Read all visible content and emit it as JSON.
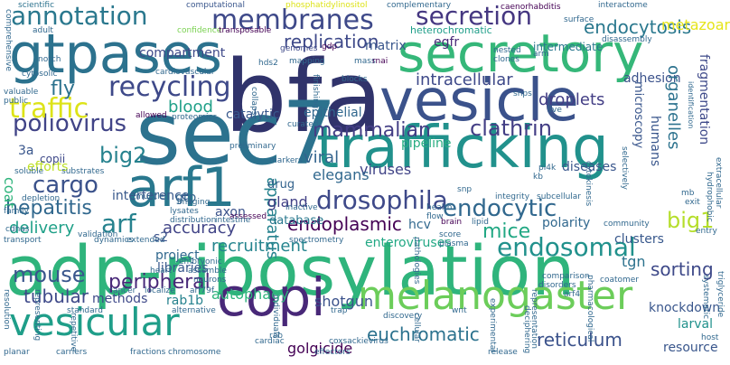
{
  "words": [
    {
      "text": "adp-ribosylation",
      "color": "#2fb47c"
    },
    {
      "text": "bfa",
      "color": "#30336b"
    },
    {
      "text": "sec7",
      "color": "#2c728e"
    },
    {
      "text": "trafficking",
      "color": "#21918c"
    },
    {
      "text": "gtpases",
      "color": "#2c728e"
    },
    {
      "text": "vesicle",
      "color": "#3b528b"
    },
    {
      "text": "secretory",
      "color": "#35b779"
    },
    {
      "text": "arf1",
      "color": "#29788e"
    },
    {
      "text": "copi",
      "color": "#482878"
    },
    {
      "text": "melanogaster",
      "color": "#6ccd5a"
    },
    {
      "text": "vesicular",
      "color": "#1f9e89"
    },
    {
      "text": "membranes",
      "color": "#3e4989"
    },
    {
      "text": "secretion",
      "color": "#453781"
    },
    {
      "text": "recycling",
      "color": "#3e4989"
    },
    {
      "text": "drosophila",
      "color": "#3e4989"
    },
    {
      "text": "annotation",
      "color": "#2a788e"
    },
    {
      "text": "endosomal",
      "color": "#21918c"
    },
    {
      "text": "endocytic",
      "color": "#31688e"
    },
    {
      "text": "mammalian",
      "color": "#433e85"
    },
    {
      "text": "clathrin",
      "color": "#433e85"
    },
    {
      "text": "poliovirus",
      "color": "#414487"
    },
    {
      "text": "big2",
      "color": "#26828e"
    },
    {
      "text": "cargo",
      "color": "#3b528b"
    },
    {
      "text": "arf",
      "color": "#26828e"
    },
    {
      "text": "endoplasmic",
      "color": "#440154"
    },
    {
      "text": "hepatitis",
      "color": "#31688e"
    },
    {
      "text": "mouse",
      "color": "#39568c"
    },
    {
      "text": "peripheral",
      "color": "#482878"
    },
    {
      "text": "tubular",
      "color": "#3e4989"
    },
    {
      "text": "traffic",
      "color": "#dde318"
    },
    {
      "text": "fly",
      "color": "#2c728e"
    },
    {
      "text": "big1",
      "color": "#b5de2b"
    },
    {
      "text": "mice",
      "color": "#22a884"
    },
    {
      "text": "endocytosis",
      "color": "#2a788e"
    },
    {
      "text": "replication",
      "color": "#3e4989"
    },
    {
      "text": "intracellular",
      "color": "#3e4989"
    },
    {
      "text": "droplets",
      "color": "#433e85"
    },
    {
      "text": "sorting",
      "color": "#3e4989"
    },
    {
      "text": "euchromatic",
      "color": "#2c728e"
    },
    {
      "text": "reticulum",
      "color": "#3b528b"
    },
    {
      "text": "recruitment",
      "color": "#25848e"
    },
    {
      "text": "apparatus",
      "color": "#26828e"
    },
    {
      "text": "blood",
      "color": "#1fa088"
    },
    {
      "text": "delivery",
      "color": "#1fa088"
    },
    {
      "text": "accuracy",
      "color": "#414487"
    },
    {
      "text": "viral",
      "color": "#33638d"
    },
    {
      "text": "gland",
      "color": "#424086"
    },
    {
      "text": "viruses",
      "color": "#414487"
    },
    {
      "text": "elegans",
      "color": "#31688e"
    },
    {
      "text": "metazoan",
      "color": "#e5e419"
    },
    {
      "text": "adhesion",
      "color": "#3b528b"
    },
    {
      "text": "organelles",
      "color": "#2c728e"
    },
    {
      "text": "autophagy",
      "color": "#2fb47c"
    },
    {
      "text": "golgicide",
      "color": "#440154"
    },
    {
      "text": "shotgun",
      "color": "#3b528b"
    },
    {
      "text": "rab1b",
      "color": "#26828e"
    },
    {
      "text": "methods",
      "color": "#3e4989"
    },
    {
      "text": "project",
      "color": "#31688e"
    },
    {
      "text": "clusters",
      "color": "#38588c"
    },
    {
      "text": "tgn",
      "color": "#2c728e"
    },
    {
      "text": "knockdown",
      "color": "#39568c"
    },
    {
      "text": "larval",
      "color": "#21918c"
    },
    {
      "text": "resource",
      "color": "#39568c"
    },
    {
      "text": "coat",
      "color": "#2fb47c"
    },
    {
      "text": "3a",
      "color": "#39568c"
    },
    {
      "text": "s2",
      "color": "#3b528b"
    },
    {
      "text": "interference",
      "color": "#38588c"
    },
    {
      "text": "efforts",
      "color": "#bddf26"
    },
    {
      "text": "epithelial",
      "color": "#31688e"
    },
    {
      "text": "catalytic",
      "color": "#38588c"
    },
    {
      "text": "pipeline",
      "color": "#27ad81"
    },
    {
      "text": "diseases",
      "color": "#39568c"
    },
    {
      "text": "polarity",
      "color": "#31688e"
    },
    {
      "text": "enteroviruses",
      "color": "#22a884"
    },
    {
      "text": "hcv",
      "color": "#31688e"
    },
    {
      "text": "libraries",
      "color": "#38588c"
    },
    {
      "text": "axon",
      "color": "#3b528b"
    },
    {
      "text": "database",
      "color": "#2a788e"
    },
    {
      "text": "gtp",
      "color": "#33638d"
    },
    {
      "text": "drug",
      "color": "#33638d"
    },
    {
      "text": "compartment",
      "color": "#3e4989"
    },
    {
      "text": "fragmentation",
      "color": "#3e4989"
    },
    {
      "text": "humans",
      "color": "#39568c"
    },
    {
      "text": "microscopy",
      "color": "#39568c"
    },
    {
      "text": "egfr",
      "color": "#482878"
    },
    {
      "text": "matrix",
      "color": "#39568c"
    },
    {
      "text": "intermediate",
      "color": "#2a788e"
    },
    {
      "text": "heterochromatic",
      "color": "#1f9e89"
    },
    {
      "text": "copii",
      "color": "#3e4989"
    },
    {
      "text": "enhanced",
      "color": "#addc30"
    },
    {
      "text": "muscle",
      "color": "#31688e"
    },
    {
      "text": "scientific",
      "color": "#2c728e"
    },
    {
      "text": "computational",
      "color": "#39568c"
    },
    {
      "text": "phosphatidylinositol",
      "color": "#dde318"
    },
    {
      "text": "complementary",
      "color": "#31688e"
    },
    {
      "text": "caenorhabditis",
      "color": "#440154"
    },
    {
      "text": "interactome",
      "color": "#31688e"
    },
    {
      "text": "surface",
      "color": "#31688e"
    },
    {
      "text": "disassembly",
      "color": "#31688e"
    },
    {
      "text": "adult",
      "color": "#31688e"
    },
    {
      "text": "confidence",
      "color": "#7ad151"
    },
    {
      "text": "transposable",
      "color": "#440154"
    },
    {
      "text": "genomes",
      "color": "#3e4989"
    },
    {
      "text": "gdp",
      "color": "#440154"
    },
    {
      "text": "nested",
      "color": "#31688e"
    },
    {
      "text": "clones",
      "color": "#31688e"
    },
    {
      "text": "arm",
      "color": "#31688e"
    },
    {
      "text": "notch",
      "color": "#31688e"
    },
    {
      "text": "mapping",
      "color": "#31688e"
    },
    {
      "text": "mass",
      "color": "#31688e"
    },
    {
      "text": "rnai",
      "color": "#440154"
    },
    {
      "text": "cytosolic",
      "color": "#31688e"
    },
    {
      "text": "cardiovascular",
      "color": "#31688e"
    },
    {
      "text": "hds2",
      "color": "#31688e"
    },
    {
      "text": "blocks",
      "color": "#31688e"
    },
    {
      "text": "valuable",
      "color": "#31688e"
    },
    {
      "text": "public",
      "color": "#31688e"
    },
    {
      "text": "allowed",
      "color": "#440154"
    },
    {
      "text": "proteomics",
      "color": "#31688e"
    },
    {
      "text": "curated",
      "color": "#31688e"
    },
    {
      "text": "live",
      "color": "#31688e"
    },
    {
      "text": "snps",
      "color": "#31688e"
    },
    {
      "text": "identification",
      "color": "#31688e"
    },
    {
      "text": "soluble",
      "color": "#31688e"
    },
    {
      "text": "substrates",
      "color": "#31688e"
    },
    {
      "text": "preliminary",
      "color": "#31688e"
    },
    {
      "text": "markers",
      "color": "#31688e"
    },
    {
      "text": "assessed",
      "color": "#440154"
    },
    {
      "text": "health",
      "color": "#31688e"
    },
    {
      "text": "flow",
      "color": "#31688e"
    },
    {
      "text": "snp",
      "color": "#31688e"
    },
    {
      "text": "integrity",
      "color": "#31688e"
    },
    {
      "text": "subcellular",
      "color": "#31688e"
    },
    {
      "text": "exit",
      "color": "#31688e"
    },
    {
      "text": "depletion",
      "color": "#31688e"
    },
    {
      "text": "imaging",
      "color": "#31688e"
    },
    {
      "text": "lysates",
      "color": "#31688e"
    },
    {
      "text": "distribution",
      "color": "#31688e"
    },
    {
      "text": "intestine",
      "color": "#31688e"
    },
    {
      "text": "inactive",
      "color": "#31688e"
    },
    {
      "text": "cdnas",
      "color": "#31688e"
    },
    {
      "text": "validation",
      "color": "#31688e"
    },
    {
      "text": "brain",
      "color": "#440154"
    },
    {
      "text": "lipid",
      "color": "#31688e"
    },
    {
      "text": "community",
      "color": "#31688e"
    },
    {
      "text": "transport",
      "color": "#31688e"
    },
    {
      "text": "dynamics",
      "color": "#31688e"
    },
    {
      "text": "extended",
      "color": "#31688e"
    },
    {
      "text": "spectrometry",
      "color": "#31688e"
    },
    {
      "text": "score",
      "color": "#31688e"
    },
    {
      "text": "plasma",
      "color": "#31688e"
    },
    {
      "text": "embryonic",
      "color": "#31688e"
    },
    {
      "text": "assemble",
      "color": "#31688e"
    },
    {
      "text": "neurons",
      "color": "#31688e"
    },
    {
      "text": "heart",
      "color": "#31688e"
    },
    {
      "text": "cancer",
      "color": "#31688e"
    },
    {
      "text": "localize",
      "color": "#31688e"
    },
    {
      "text": "arf79f",
      "color": "#31688e"
    },
    {
      "text": "standard",
      "color": "#31688e"
    },
    {
      "text": "representing",
      "color": "#31688e"
    },
    {
      "text": "alternative",
      "color": "#31688e"
    },
    {
      "text": "discovery",
      "color": "#31688e"
    },
    {
      "text": "wnt",
      "color": "#31688e"
    },
    {
      "text": "comparison",
      "color": "#31688e"
    },
    {
      "text": "disorders",
      "color": "#31688e"
    },
    {
      "text": "arf4",
      "color": "#31688e"
    },
    {
      "text": "coatomer",
      "color": "#31688e"
    },
    {
      "text": "pharmacological",
      "color": "#31688e"
    },
    {
      "text": "triglyceride",
      "color": "#31688e"
    },
    {
      "text": "systematic",
      "color": "#31688e"
    },
    {
      "text": "experimental",
      "color": "#31688e"
    },
    {
      "text": "representation",
      "color": "#31688e"
    },
    {
      "text": "deciphering",
      "color": "#31688e"
    },
    {
      "text": "planar",
      "color": "#31688e"
    },
    {
      "text": "carriers",
      "color": "#31688e"
    },
    {
      "text": "fractions",
      "color": "#31688e"
    },
    {
      "text": "chromosome",
      "color": "#31688e"
    },
    {
      "text": "cardiac",
      "color": "#31688e"
    },
    {
      "text": "effectors",
      "color": "#31688e"
    },
    {
      "text": "release",
      "color": "#31688e"
    },
    {
      "text": "host",
      "color": "#31688e"
    },
    {
      "text": "trap",
      "color": "#31688e"
    },
    {
      "text": "coxsackievirus",
      "color": "#31688e"
    },
    {
      "text": "rab",
      "color": "#31688e"
    },
    {
      "text": "resolution",
      "color": "#31688e"
    },
    {
      "text": "repetitive",
      "color": "#31688e"
    },
    {
      "text": "pathologies",
      "color": "#31688e"
    },
    {
      "text": "cytokinesis",
      "color": "#31688e"
    },
    {
      "text": "selectively",
      "color": "#31688e"
    },
    {
      "text": "pi4k",
      "color": "#31688e"
    },
    {
      "text": "kb",
      "color": "#31688e"
    },
    {
      "text": "comprehensive",
      "color": "#31688e"
    },
    {
      "text": "hydrophobic",
      "color": "#31688e"
    },
    {
      "text": "extracellular",
      "color": "#31688e"
    },
    {
      "text": "collapse",
      "color": "#31688e"
    },
    {
      "text": "finishing",
      "color": "#31688e"
    },
    {
      "text": "cellular",
      "color": "#31688e"
    },
    {
      "text": "individuals",
      "color": "#31688e"
    },
    {
      "text": "mb",
      "color": "#31688e"
    },
    {
      "text": "family",
      "color": "#31688e"
    },
    {
      "text": "entry",
      "color": "#31688e"
    }
  ]
}
